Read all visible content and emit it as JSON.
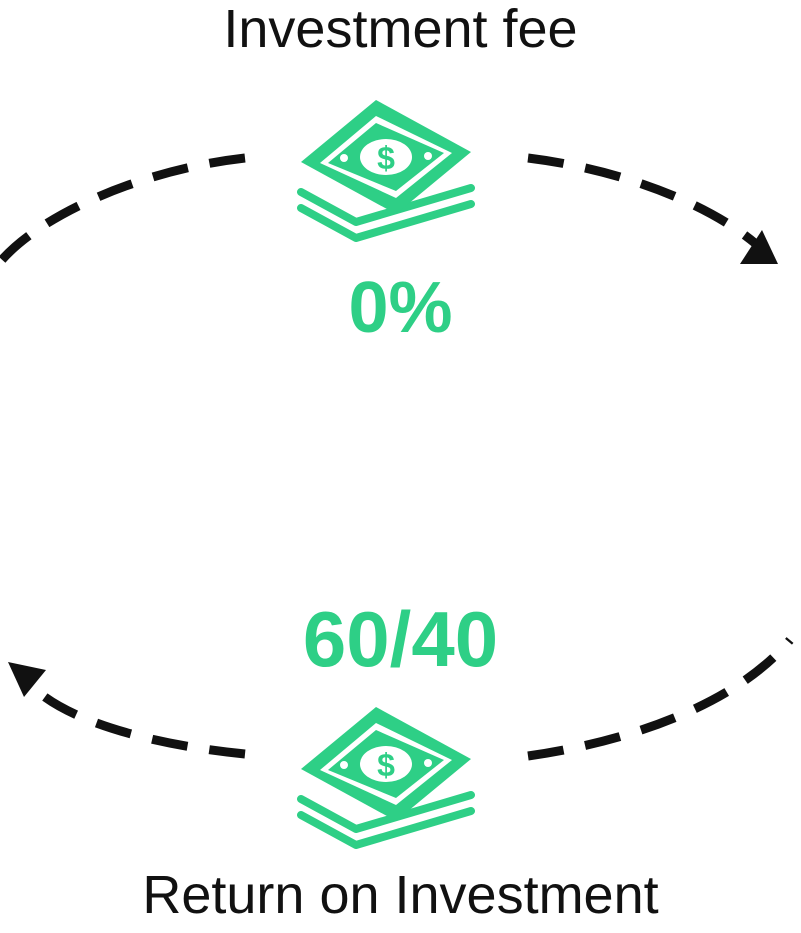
{
  "top": {
    "label": "Investment fee",
    "value": "0%",
    "icon": "money-stack-icon"
  },
  "bottom": {
    "label": "Return on Investment",
    "value": "60/40",
    "icon": "money-stack-icon"
  },
  "colors": {
    "accent": "#2ecf86",
    "text": "#111111",
    "arrow": "#111111"
  }
}
